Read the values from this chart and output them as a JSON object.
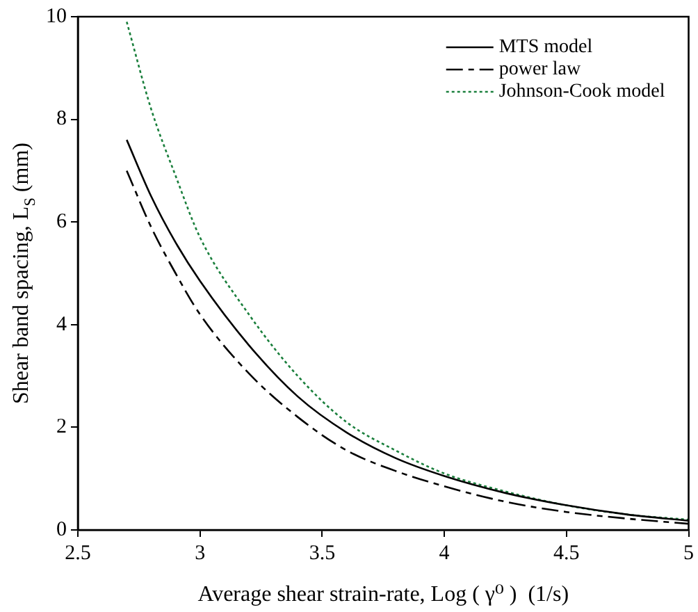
{
  "chart_data": {
    "type": "line",
    "xlabel": "Average shear strain-rate, Log ( γ⁰ )  (1/s)",
    "ylabel": "Shear band spacing, L$_{S}$ (mm)",
    "xlim": [
      2.5,
      5
    ],
    "xticks": [
      2.5,
      3,
      3.5,
      4,
      4.5,
      5
    ],
    "ylim": [
      0,
      10
    ],
    "yticks": [
      0,
      2,
      4,
      6,
      8,
      10
    ],
    "grid": false,
    "legend": "top right",
    "marker": "none",
    "series": [
      {
        "name": "MTS model",
        "color": "#000000",
        "line_style": "solid",
        "x": [
          2.7,
          2.8,
          2.9,
          3.0,
          3.2,
          3.4,
          3.6,
          3.8,
          4.0,
          4.25,
          4.5,
          4.75,
          5.0
        ],
        "values": [
          7.6,
          6.5,
          5.6,
          4.85,
          3.6,
          2.6,
          1.9,
          1.4,
          1.05,
          0.72,
          0.48,
          0.3,
          0.18
        ]
      },
      {
        "name": "power law",
        "color": "#000000",
        "line_style": "dashed",
        "x": [
          2.7,
          2.8,
          2.9,
          3.0,
          3.2,
          3.4,
          3.6,
          3.8,
          4.0,
          4.25,
          4.5,
          4.75,
          5.0
        ],
        "values": [
          7.0,
          5.9,
          5.0,
          4.2,
          3.05,
          2.2,
          1.55,
          1.15,
          0.85,
          0.55,
          0.35,
          0.22,
          0.12
        ]
      },
      {
        "name": "Johnson-Cook model",
        "color": "#1a7f3c",
        "line_style": "dotted",
        "x": [
          2.7,
          2.8,
          2.9,
          3.0,
          3.2,
          3.4,
          3.6,
          3.8,
          4.0,
          4.25,
          4.5,
          4.75,
          5.0
        ],
        "values": [
          9.9,
          8.2,
          6.9,
          5.7,
          4.2,
          3.0,
          2.1,
          1.55,
          1.1,
          0.75,
          0.48,
          0.3,
          0.2
        ]
      }
    ]
  }
}
